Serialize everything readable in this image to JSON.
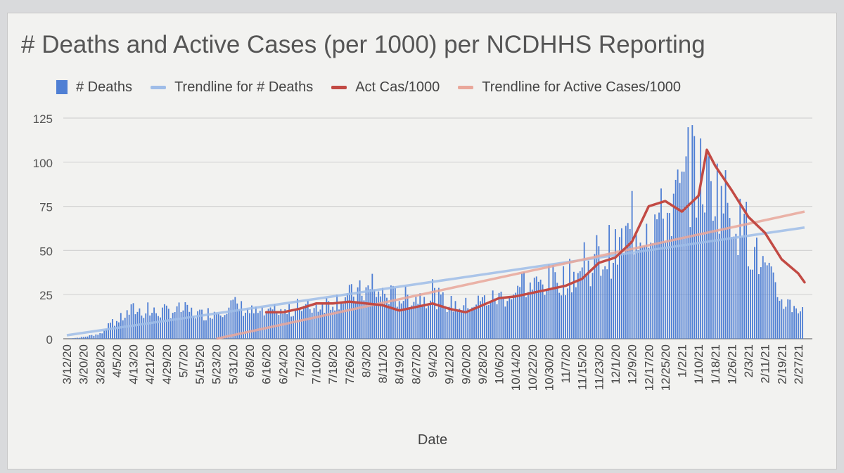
{
  "colors": {
    "deaths_bar": "#4f7fd4",
    "deaths_trend": "#9fbde8",
    "cases_line": "#c24a44",
    "cases_trend": "#e9a79a",
    "grid": "#d4d4d4",
    "text": "#555555"
  },
  "chart_data": {
    "type": "bar",
    "title": "# Deaths and Active Cases (per 1000) per NCDHHS Reporting",
    "xlabel": "Date",
    "ylabel": "",
    "ylim": [
      0,
      125
    ],
    "yticks": [
      0,
      25,
      50,
      75,
      100,
      125
    ],
    "grid": true,
    "legend_position": "top",
    "legend": [
      {
        "label": "# Deaths",
        "kind": "bar",
        "color": "#4f7fd4"
      },
      {
        "label": "Trendline for # Deaths",
        "kind": "line",
        "color": "#9fbde8"
      },
      {
        "label": "Act Cas/1000",
        "kind": "line",
        "color": "#c24a44"
      },
      {
        "label": "Trendline for Active Cases/1000",
        "kind": "line",
        "color": "#e9a79a"
      }
    ],
    "x_ticks": [
      "3/12/20",
      "3/20/20",
      "3/28/20",
      "4/5/20",
      "4/13/20",
      "4/21/20",
      "4/29/20",
      "5/7/20",
      "5/15/20",
      "5/23/20",
      "5/31/20",
      "6/8/20",
      "6/16/20",
      "6/24/20",
      "7/2/20",
      "7/10/20",
      "7/18/20",
      "7/26/20",
      "8/3/20",
      "8/11/20",
      "8/19/20",
      "8/27/20",
      "9/4/20",
      "9/12/20",
      "9/20/20",
      "9/28/20",
      "10/6/20",
      "10/14/20",
      "10/22/20",
      "10/30/20",
      "11/7/20",
      "11/15/20",
      "11/23/20",
      "12/1/20",
      "12/9/20",
      "12/17/20",
      "12/25/20",
      "1/2/21",
      "1/10/21",
      "1/18/21",
      "1/26/21",
      "2/3/21",
      "2/11/21",
      "2/19/21",
      "2/27/21"
    ],
    "series": [
      {
        "name": "# Deaths",
        "type": "bar",
        "date_range": [
          "3/12/20",
          "3/1/21"
        ],
        "values_by_8day_period": [
          0,
          1,
          3,
          10,
          17,
          15,
          16,
          17,
          14,
          16,
          20,
          16,
          14,
          15,
          17,
          19,
          22,
          25,
          28,
          26,
          24,
          24,
          25,
          20,
          19,
          22,
          24,
          26,
          30,
          34,
          35,
          40,
          44,
          50,
          62,
          68,
          70,
          85,
          95,
          88,
          75,
          55,
          40,
          22,
          18
        ]
      },
      {
        "name": "Trendline for # Deaths",
        "type": "line",
        "points": [
          {
            "x": "3/12/20",
            "y": 2
          },
          {
            "x": "3/2/21",
            "y": 63
          }
        ]
      },
      {
        "name": "Act Cas/1000",
        "type": "line",
        "points": [
          {
            "x": "6/16/20",
            "y": 15
          },
          {
            "x": "6/24/20",
            "y": 15
          },
          {
            "x": "7/2/20",
            "y": 17
          },
          {
            "x": "7/10/20",
            "y": 20
          },
          {
            "x": "7/18/20",
            "y": 20
          },
          {
            "x": "7/26/20",
            "y": 21
          },
          {
            "x": "8/3/20",
            "y": 20
          },
          {
            "x": "8/11/20",
            "y": 19
          },
          {
            "x": "8/19/20",
            "y": 16
          },
          {
            "x": "8/27/20",
            "y": 18
          },
          {
            "x": "9/4/20",
            "y": 20
          },
          {
            "x": "9/12/20",
            "y": 17
          },
          {
            "x": "9/20/20",
            "y": 15
          },
          {
            "x": "9/28/20",
            "y": 19
          },
          {
            "x": "10/6/20",
            "y": 23
          },
          {
            "x": "10/14/20",
            "y": 24
          },
          {
            "x": "10/22/20",
            "y": 26
          },
          {
            "x": "10/30/20",
            "y": 28
          },
          {
            "x": "11/7/20",
            "y": 30
          },
          {
            "x": "11/15/20",
            "y": 34
          },
          {
            "x": "11/23/20",
            "y": 43
          },
          {
            "x": "12/1/20",
            "y": 46
          },
          {
            "x": "12/9/20",
            "y": 55
          },
          {
            "x": "12/17/20",
            "y": 75
          },
          {
            "x": "12/25/20",
            "y": 78
          },
          {
            "x": "1/2/21",
            "y": 72
          },
          {
            "x": "1/10/21",
            "y": 81
          },
          {
            "x": "1/14/21",
            "y": 107
          },
          {
            "x": "1/18/21",
            "y": 98
          },
          {
            "x": "1/26/21",
            "y": 84
          },
          {
            "x": "2/3/21",
            "y": 69
          },
          {
            "x": "2/11/21",
            "y": 60
          },
          {
            "x": "2/19/21",
            "y": 45
          },
          {
            "x": "2/27/21",
            "y": 37
          },
          {
            "x": "3/2/21",
            "y": 32
          }
        ]
      },
      {
        "name": "Trendline for Active Cases/1000",
        "type": "line",
        "points": [
          {
            "x": "5/23/20",
            "y": 0
          },
          {
            "x": "3/2/21",
            "y": 72
          }
        ]
      }
    ]
  }
}
